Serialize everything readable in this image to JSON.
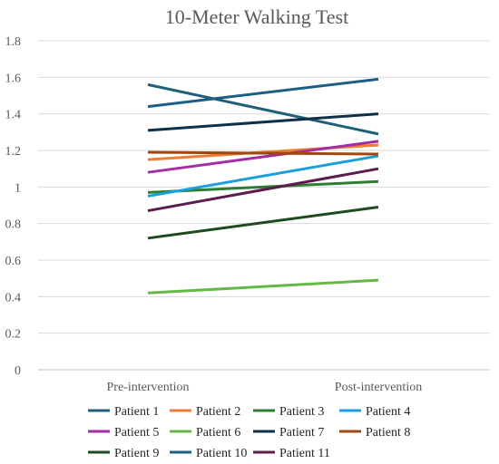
{
  "chart_data": {
    "type": "line",
    "title": "10-Meter Walking Test",
    "xlabel": "",
    "ylabel": "",
    "categories": [
      "Pre-intervention",
      "Post-intervention"
    ],
    "ylim": [
      0,
      1.8
    ],
    "yticks": [
      "0",
      "0.2",
      "0.4",
      "0.6",
      "0.8",
      "1",
      "1.2",
      "1.4",
      "1.6",
      "1.8"
    ],
    "grid": true,
    "legend_position": "bottom",
    "series": [
      {
        "name": "Patient 1",
        "values": [
          1.56,
          1.29
        ],
        "color": "#1f5f7a"
      },
      {
        "name": "Patient 2",
        "values": [
          1.15,
          1.23
        ],
        "color": "#ed7d31"
      },
      {
        "name": "Patient 3",
        "values": [
          0.97,
          1.03
        ],
        "color": "#2e7d32"
      },
      {
        "name": "Patient 4",
        "values": [
          0.95,
          1.17
        ],
        "color": "#1aa0dc"
      },
      {
        "name": "Patient 5",
        "values": [
          1.08,
          1.25
        ],
        "color": "#a12ea3"
      },
      {
        "name": "Patient 6",
        "values": [
          0.42,
          0.49
        ],
        "color": "#66b944"
      },
      {
        "name": "Patient 7",
        "values": [
          1.31,
          1.4
        ],
        "color": "#0e3048"
      },
      {
        "name": "Patient 8",
        "values": [
          1.19,
          1.18
        ],
        "color": "#a0460f"
      },
      {
        "name": "Patient 9",
        "values": [
          0.72,
          0.89
        ],
        "color": "#1e4a1e"
      },
      {
        "name": "Patient 10",
        "values": [
          1.44,
          1.59
        ],
        "color": "#1b5e86"
      },
      {
        "name": "Patient 11",
        "values": [
          0.87,
          1.1
        ],
        "color": "#5e1b4e"
      }
    ]
  }
}
